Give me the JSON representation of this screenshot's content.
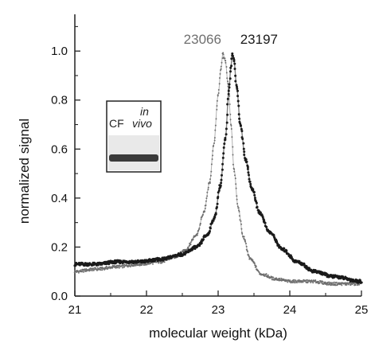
{
  "chart_data": {
    "type": "scatter",
    "title": "",
    "xlabel": "molecular weight (kDa)",
    "ylabel": "normalized signal",
    "xlim": [
      21,
      25
    ],
    "ylim": [
      0,
      1.15
    ],
    "x_ticks": [
      "21",
      "22",
      "23",
      "24",
      "25"
    ],
    "y_ticks": [
      "0.0",
      "0.2",
      "0.4",
      "0.6",
      "0.8",
      "1.0"
    ],
    "grid": false,
    "legend": "none",
    "series": [
      {
        "color": "#6f6f6f",
        "peak_label": "23066",
        "x": [
          21.0,
          21.3,
          21.6,
          21.9,
          22.2,
          22.4,
          22.55,
          22.7,
          22.8,
          22.88,
          22.94,
          23.0,
          23.04,
          23.066,
          23.1,
          23.14,
          23.18,
          23.22,
          23.28,
          23.35,
          23.45,
          23.6,
          23.8,
          24.0,
          24.3,
          24.6,
          25.0
        ],
        "y": [
          0.1,
          0.11,
          0.12,
          0.13,
          0.14,
          0.16,
          0.19,
          0.25,
          0.34,
          0.46,
          0.62,
          0.82,
          0.93,
          0.99,
          0.96,
          0.86,
          0.7,
          0.52,
          0.36,
          0.24,
          0.15,
          0.09,
          0.07,
          0.06,
          0.06,
          0.05,
          0.05
        ]
      },
      {
        "color": "#1a1a1a",
        "peak_label": "23197",
        "x": [
          21.0,
          21.3,
          21.6,
          21.9,
          22.2,
          22.5,
          22.7,
          22.85,
          22.95,
          23.03,
          23.1,
          23.15,
          23.18,
          23.197,
          23.22,
          23.26,
          23.31,
          23.38,
          23.47,
          23.58,
          23.72,
          23.9,
          24.1,
          24.35,
          24.6,
          25.0
        ],
        "y": [
          0.13,
          0.13,
          0.14,
          0.14,
          0.15,
          0.17,
          0.2,
          0.25,
          0.32,
          0.45,
          0.64,
          0.84,
          0.94,
          0.99,
          0.96,
          0.85,
          0.7,
          0.56,
          0.44,
          0.34,
          0.26,
          0.19,
          0.14,
          0.1,
          0.08,
          0.06
        ]
      }
    ],
    "annotations": [
      {
        "text": "23066",
        "x": 23.066,
        "y": 1.03,
        "anchor": "end",
        "color": "#6f6f6f"
      },
      {
        "text": "23197",
        "x": 23.197,
        "y": 1.03,
        "anchor": "start",
        "color": "#1a1a1a"
      }
    ],
    "inset": {
      "labels": [
        "CF",
        "in",
        "vivo"
      ]
    }
  }
}
